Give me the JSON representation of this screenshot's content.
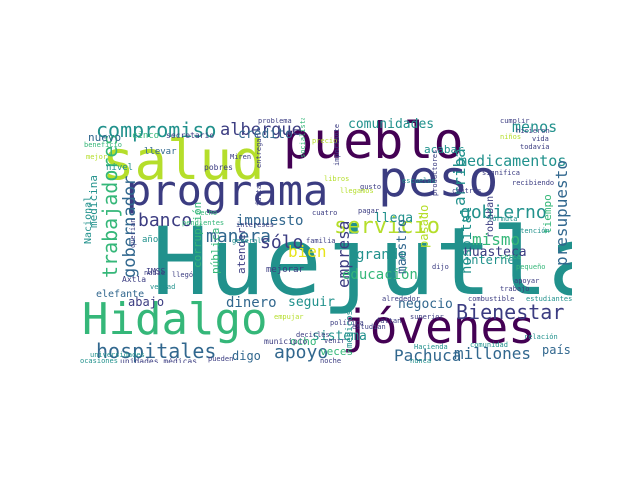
{
  "colors": {
    "dark_purple": "#440154",
    "indigo": "#3b3c81",
    "blue": "#31678e",
    "teal": "#21918c",
    "green": "#35b779",
    "lime": "#b5de2b",
    "yellow": "#e7e419"
  },
  "words": [
    {
      "text": "Huejutla",
      "color": "teal"
    },
    {
      "text": "salud",
      "color": "lime"
    },
    {
      "text": "pueblo",
      "color": "dark_purple"
    },
    {
      "text": "peso",
      "color": "indigo"
    },
    {
      "text": "programa",
      "color": "indigo"
    },
    {
      "text": "jóvenes",
      "color": "dark_purple"
    },
    {
      "text": "Hidalgo",
      "color": "green"
    },
    {
      "text": "compromiso",
      "color": "teal"
    },
    {
      "text": "albergue",
      "color": "indigo"
    },
    {
      "text": "hospitales",
      "color": "blue"
    },
    {
      "text": "apoyo",
      "color": "blue"
    },
    {
      "text": "Bienestar",
      "color": "indigo"
    },
    {
      "text": "servicio",
      "color": "lime"
    },
    {
      "text": "gobierno",
      "color": "teal"
    },
    {
      "text": "medicamentos",
      "color": "teal"
    },
    {
      "text": "presupuesto",
      "color": "blue"
    },
    {
      "text": "trabajadores",
      "color": "green"
    },
    {
      "text": "gobernador",
      "color": "blue"
    },
    {
      "text": "banco",
      "color": "indigo"
    },
    {
      "text": "manera",
      "color": "blue"
    },
    {
      "text": "sólo",
      "color": "indigo"
    },
    {
      "text": "empresa",
      "color": "indigo"
    },
    {
      "text": "educación",
      "color": "green"
    },
    {
      "text": "mismo",
      "color": "green"
    },
    {
      "text": "Huasteca",
      "color": "indigo"
    },
    {
      "text": "millones",
      "color": "blue"
    },
    {
      "text": "Pachuca",
      "color": "blue"
    },
    {
      "text": "comunidades",
      "color": "teal"
    },
    {
      "text": "menos",
      "color": "teal"
    },
    {
      "text": "arriba",
      "color": "teal"
    },
    {
      "text": "impuesto",
      "color": "blue"
    },
    {
      "text": "crédito",
      "color": "blue"
    },
    {
      "text": "medicina",
      "color": "teal"
    },
    {
      "text": "hospital",
      "color": "teal"
    },
    {
      "text": "negocio",
      "color": "blue"
    },
    {
      "text": "dinero",
      "color": "blue"
    },
    {
      "text": "seguir",
      "color": "teal"
    },
    {
      "text": "sistema",
      "color": "teal"
    },
    {
      "text": "grande",
      "color": "teal"
    },
    {
      "text": "llega",
      "color": "teal"
    },
    {
      "text": "acabar",
      "color": "teal"
    },
    {
      "text": "internet",
      "color": "teal"
    },
    {
      "text": "maestro",
      "color": "blue"
    },
    {
      "text": "bien",
      "color": "yellow"
    },
    {
      "text": "digo",
      "color": "blue"
    },
    {
      "text": "ocho",
      "color": "green"
    },
    {
      "text": "veces",
      "color": "green"
    },
    {
      "text": "pública",
      "color": "green"
    },
    {
      "text": "atender",
      "color": "indigo"
    },
    {
      "text": "abajo",
      "color": "indigo"
    },
    {
      "text": "país",
      "color": "blue"
    },
    {
      "text": "nuevo",
      "color": "blue"
    },
    {
      "text": "corrupción",
      "color": "green"
    },
    {
      "text": "Nacional",
      "color": "teal"
    },
    {
      "text": "tiempo",
      "color": "green"
    },
    {
      "text": "pasado",
      "color": "lime"
    },
    {
      "text": "robaban",
      "color": "indigo"
    },
    {
      "text": "elefante",
      "color": "blue"
    },
    {
      "text": "llevar",
      "color": "blue"
    },
    {
      "text": "pobres",
      "color": "indigo"
    },
    {
      "text": "secretario",
      "color": "indigo"
    },
    {
      "text": "cinco",
      "color": "green"
    },
    {
      "text": "unidades médicas",
      "color": "indigo"
    },
    {
      "text": "ocasiones",
      "color": "teal"
    },
    {
      "text": "noche",
      "color": "indigo"
    },
    {
      "text": "nunca",
      "color": "teal"
    },
    {
      "text": "médicos",
      "color": "teal"
    },
    {
      "text": "municipio",
      "color": "indigo"
    },
    {
      "text": "mejorar",
      "color": "indigo"
    },
    {
      "text": "Axtla",
      "color": "indigo"
    },
    {
      "text": "IMSS",
      "color": "indigo"
    },
    {
      "text": "años",
      "color": "teal"
    },
    {
      "text": "nivel",
      "color": "teal"
    },
    {
      "text": "problema",
      "color": "indigo"
    },
    {
      "text": "cumplir",
      "color": "indigo"
    },
    {
      "text": "hicieron",
      "color": "indigo"
    },
    {
      "text": "vida",
      "color": "indigo"
    },
    {
      "text": "todavía",
      "color": "indigo"
    },
    {
      "text": "estudiantes",
      "color": "teal"
    },
    {
      "text": "relación",
      "color": "teal"
    },
    {
      "text": "combustible",
      "color": "indigo"
    },
    {
      "text": "trabajo",
      "color": "indigo"
    },
    {
      "text": "apoyar",
      "color": "indigo"
    },
    {
      "text": "pequeño",
      "color": "green"
    },
    {
      "text": "significa",
      "color": "indigo"
    },
    {
      "text": "centros",
      "color": "indigo"
    },
    {
      "text": "productores",
      "color": "indigo"
    },
    {
      "text": "Hacienda",
      "color": "teal"
    },
    {
      "text": "comunidad",
      "color": "teal"
    },
    {
      "text": "superior",
      "color": "indigo"
    },
    {
      "text": "dijo",
      "color": "indigo"
    },
    {
      "text": "alrededor",
      "color": "indigo"
    },
    {
      "text": "política",
      "color": "indigo"
    },
    {
      "text": "estudian",
      "color": "indigo"
    },
    {
      "text": "venir",
      "color": "indigo"
    },
    {
      "text": "decirles",
      "color": "indigo"
    },
    {
      "text": "familia",
      "color": "indigo"
    },
    {
      "text": "cuatro",
      "color": "indigo"
    },
    {
      "text": "pagar",
      "color": "indigo"
    },
    {
      "text": "gusto",
      "color": "indigo"
    },
    {
      "text": "general",
      "color": "teal"
    },
    {
      "text": "empujar",
      "color": "lime"
    },
    {
      "text": "pueden",
      "color": "indigo"
    },
    {
      "text": "nadie",
      "color": "indigo"
    },
    {
      "text": "verdad",
      "color": "teal"
    },
    {
      "text": "llegó",
      "color": "indigo"
    },
    {
      "text": "querían",
      "color": "indigo"
    },
    {
      "text": "subsecretario",
      "color": "teal"
    },
    {
      "text": "beneficio",
      "color": "green"
    },
    {
      "text": "Miren",
      "color": "indigo"
    },
    {
      "text": "precio",
      "color": "lime"
    },
    {
      "text": "importante",
      "color": "indigo"
    },
    {
      "text": "entregar",
      "color": "indigo"
    },
    {
      "text": "niños",
      "color": "lime"
    },
    {
      "text": "mejor",
      "color": "lime"
    },
    {
      "text": "escuelas",
      "color": "teal"
    },
    {
      "text": "fórmula",
      "color": "teal"
    },
    {
      "text": "atención",
      "color": "teal"
    },
    {
      "text": "recibiendo",
      "color": "indigo"
    },
    {
      "text": "cerca",
      "color": "green"
    },
    {
      "text": "faltan",
      "color": "indigo"
    },
    {
      "text": "intereses",
      "color": "indigo"
    },
    {
      "text": "universidades",
      "color": "teal"
    },
    {
      "text": "hecho",
      "color": "green"
    },
    {
      "text": "pendientes",
      "color": "green"
    },
    {
      "text": "libros",
      "color": "lime"
    },
    {
      "text": "falta",
      "color": "indigo"
    },
    {
      "text": "socialista",
      "color": "green"
    },
    {
      "text": "llegamos",
      "color": "lime"
    }
  ]
}
